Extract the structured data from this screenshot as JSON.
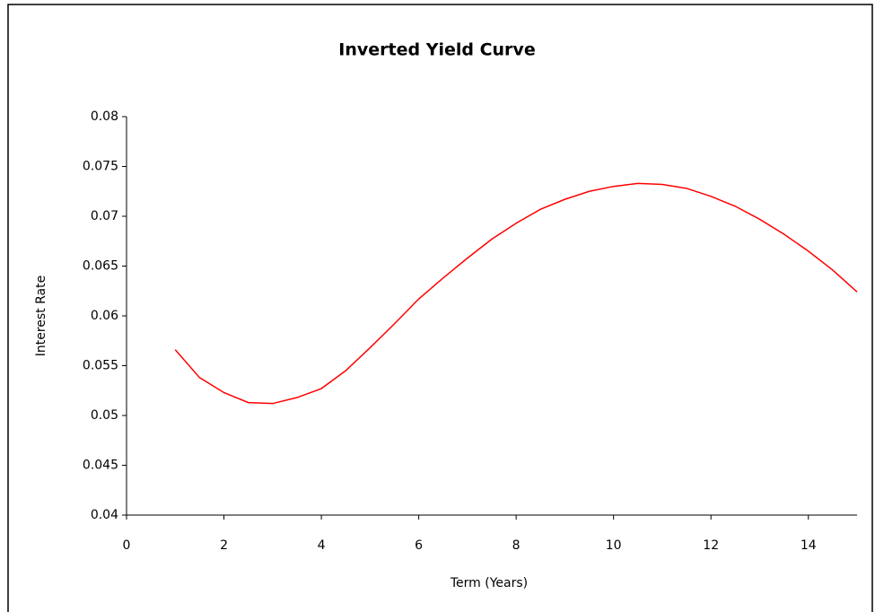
{
  "chart_data": {
    "type": "line",
    "title": "Inverted Yield Curve",
    "x_label": "Term (Years)",
    "y_label": "Interest Rate",
    "x": [
      1,
      1.5,
      2,
      2.5,
      3,
      3.5,
      4,
      4.5,
      5,
      5.5,
      6,
      6.5,
      7,
      7.5,
      8,
      8.5,
      9,
      9.5,
      10,
      10.5,
      11,
      11.5,
      12,
      12.5,
      13,
      13.5,
      14,
      14.5,
      15
    ],
    "series": [
      {
        "color": "#ff0000",
        "values": [
          0.0566,
          0.0538,
          0.0523,
          0.0513,
          0.0512,
          0.0518,
          0.0527,
          0.0545,
          0.0568,
          0.0592,
          0.0617,
          0.0638,
          0.0658,
          0.0677,
          0.0693,
          0.0707,
          0.0717,
          0.0725,
          0.073,
          0.0733,
          0.0732,
          0.0728,
          0.072,
          0.071,
          0.0697,
          0.0682,
          0.0665,
          0.0646,
          0.0624
        ]
      }
    ],
    "xlim": [
      0,
      15
    ],
    "xticks": [
      0,
      2,
      4,
      6,
      8,
      10,
      12,
      14
    ],
    "ylim": [
      0.04,
      0.08
    ],
    "yticks": [
      0.04,
      0.045,
      0.05,
      0.055,
      0.06,
      0.065,
      0.07,
      0.075,
      0.08
    ],
    "grid": false
  }
}
